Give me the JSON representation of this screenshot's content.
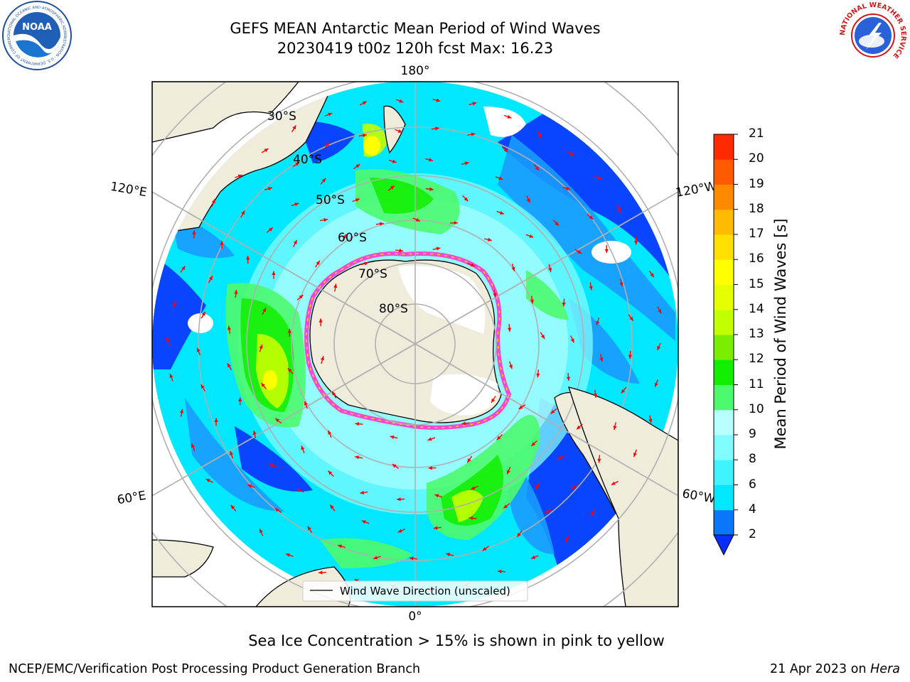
{
  "title": {
    "line1": "GEFS MEAN Antarctic Mean Period of Wind Waves",
    "line2": "20230419 t00z 120h fcst   Max: 16.23"
  },
  "map": {
    "projection": "south polar stereographic",
    "meridian_labels": [
      "180°",
      "120°E",
      "120°W",
      "60°E",
      "60°W",
      "0°"
    ],
    "parallel_labels": [
      "30°S",
      "40°S",
      "50°S",
      "60°S",
      "70°S",
      "80°S"
    ],
    "legend": "Wind Wave Direction (unscaled)",
    "arrow_color": "#ff0000",
    "land_color": "#efecdc"
  },
  "colorbar": {
    "label": "Mean Period of Wind Waves [s]",
    "ticks": [
      "2",
      "4",
      "6",
      "8",
      "9",
      "10",
      "11",
      "12",
      "13",
      "14",
      "15",
      "16",
      "17",
      "18",
      "19",
      "20",
      "21"
    ],
    "colors": [
      "#0a77fa",
      "#00e7ff",
      "#3ff2ff",
      "#80fbff",
      "#b8ffff",
      "#4cfa6d",
      "#11ee00",
      "#7aee00",
      "#c4ff00",
      "#e6ff00",
      "#ffff00",
      "#ffe000",
      "#ffbb00",
      "#ff8a00",
      "#ff5a00",
      "#ff2a00"
    ],
    "under_color": "#0b2cff"
  },
  "footer": {
    "note": "Sea Ice Concentration > 15% is shown in pink to yellow",
    "credit": "NCEP/EMC/Verification Post Processing Product Generation Branch",
    "date": "21 Apr 2023 on",
    "host": "Hera"
  },
  "logos": {
    "noaa": "NOAA",
    "noaa_ring": "NATIONAL OCEANIC AND ATMOSPHERIC ADMINISTRATION · U.S. DEPARTMENT OF COMMERCE ·",
    "nws_ring": "NATIONAL WEATHER SERVICE"
  }
}
